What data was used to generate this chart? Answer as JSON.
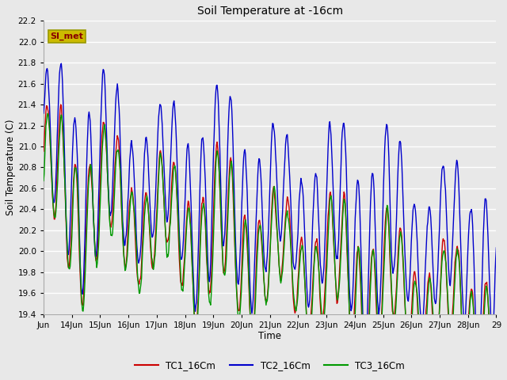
{
  "title": "Soil Temperature at -16cm",
  "xlabel": "Time",
  "ylabel": "Soil Temperature (C)",
  "ylim": [
    19.4,
    22.2
  ],
  "xlim_days": [
    13.0,
    29.0
  ],
  "background_color": "#e8e8e8",
  "plot_bg_color": "#e8e8e8",
  "grid_color": "white",
  "annotation_text": "SI_met",
  "annotation_bg": "#ccbb00",
  "annotation_text_color": "#880000",
  "legend_labels": [
    "TC1_16Cm",
    "TC2_16Cm",
    "TC3_16Cm"
  ],
  "line_colors": [
    "#cc0000",
    "#0000cc",
    "#009900"
  ],
  "tick_labels": [
    "Jun",
    "14Jun",
    "15Jun",
    "16Jun",
    "17Jun",
    "18Jun",
    "19Jun",
    "20Jun",
    "21Jun",
    "22Jun",
    "23Jun",
    "24Jun",
    "25Jun",
    "26Jun",
    "27Jun",
    "28Jun",
    "29"
  ],
  "tick_positions": [
    13,
    14,
    15,
    16,
    17,
    18,
    19,
    20,
    21,
    22,
    23,
    24,
    25,
    26,
    27,
    28,
    29
  ]
}
